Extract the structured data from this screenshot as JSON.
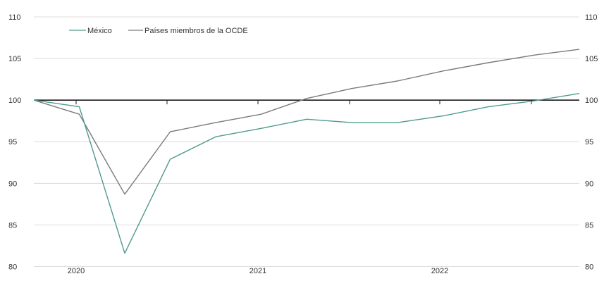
{
  "chart_data": {
    "type": "line",
    "title": "",
    "xlabel": "",
    "ylabel": "",
    "x": [
      "2019-Q4",
      "2020-Q1",
      "2020-Q2",
      "2020-Q3",
      "2020-Q4",
      "2021-Q1",
      "2021-Q2",
      "2021-Q3",
      "2021-Q4",
      "2022-Q1",
      "2022-Q2",
      "2022-Q3",
      "2022-Q4"
    ],
    "x_tick_labels": [
      "2020",
      "2021",
      "2022"
    ],
    "ylim": [
      80,
      110
    ],
    "y_ticks": [
      80,
      85,
      90,
      95,
      100,
      105,
      110
    ],
    "y_tick_labels": [
      "80",
      "85",
      "90",
      "95",
      "100",
      "105",
      "110"
    ],
    "y_tick_labels_right": [
      "80",
      "85",
      "90",
      "95",
      "100",
      "105",
      "110"
    ],
    "reference_line": 100,
    "grid": true,
    "legend": {
      "position": "top-left"
    },
    "series": [
      {
        "name": "México",
        "color": "#4f9a8f",
        "values": [
          100,
          99.2,
          81.6,
          92.9,
          95.6,
          96.6,
          97.7,
          97.3,
          97.3,
          98.1,
          99.2,
          99.9,
          100.8
        ]
      },
      {
        "name": "Países miembros de la OCDE",
        "color": "#7a7a7a",
        "values": [
          100,
          98.3,
          88.7,
          96.2,
          97.3,
          98.3,
          100.2,
          101.4,
          102.3,
          103.5,
          104.5,
          105.4,
          106.1
        ]
      }
    ]
  }
}
